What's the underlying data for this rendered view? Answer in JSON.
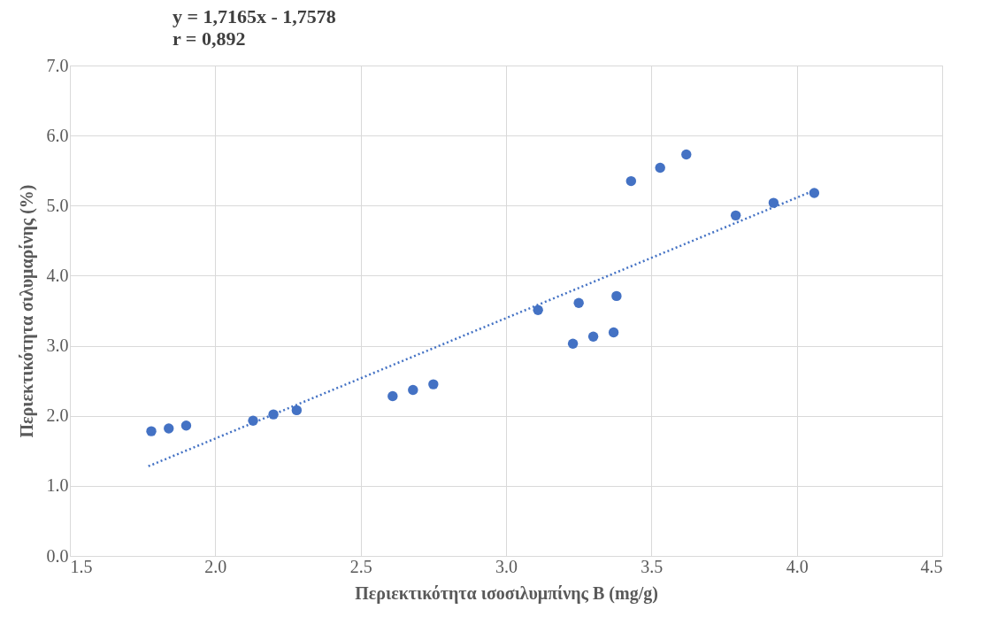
{
  "chart_data": {
    "type": "scatter",
    "title": "y = 1,7165x - 1,7578",
    "subtitle": "r = 0,892",
    "xlabel": "Περιεκτικότητα ισοσιλυμπίνης Β (mg/g)",
    "ylabel": "Περιεκτικότητα σιλυμαρίνης (%)",
    "xlim": [
      1.5,
      4.5
    ],
    "xticks": [
      {
        "value": 1.5,
        "label": "1.5"
      },
      {
        "value": 2,
        "label": "2.0"
      },
      {
        "value": 2.5,
        "label": "2.5"
      },
      {
        "value": 3,
        "label": "3.0"
      },
      {
        "value": 3.5,
        "label": "3.5"
      },
      {
        "value": 4,
        "label": "4.0"
      },
      {
        "value": 4.5,
        "label": "4.5"
      }
    ],
    "ylim": [
      0,
      7
    ],
    "yticks": [
      {
        "value": 0,
        "label": "0.0"
      },
      {
        "value": 1,
        "label": "1.0"
      },
      {
        "value": 2,
        "label": "2.0"
      },
      {
        "value": 3,
        "label": "3.0"
      },
      {
        "value": 4,
        "label": "4.0"
      },
      {
        "value": 5,
        "label": "5.0"
      },
      {
        "value": 6,
        "label": "6.0"
      },
      {
        "value": 7,
        "label": "7.0"
      }
    ],
    "grid": true,
    "series": [
      {
        "marker": "circle",
        "color": "#4472c4",
        "x": [
          1.78,
          1.84,
          1.9,
          2.13,
          2.2,
          2.28,
          2.61,
          2.68,
          2.75,
          3.11,
          3.23,
          3.25,
          3.3,
          3.37,
          3.38,
          3.43,
          3.53,
          3.62,
          3.79,
          3.92,
          4.06
        ],
        "values": [
          1.78,
          1.82,
          1.86,
          1.93,
          2.02,
          2.08,
          2.28,
          2.37,
          2.45,
          3.51,
          3.03,
          3.61,
          3.13,
          3.19,
          3.71,
          5.35,
          5.54,
          5.73,
          4.86,
          5.04,
          5.18
        ]
      },
      {
        "type": "line",
        "marker": "none",
        "line_style": "dotted",
        "color": "#4472c4",
        "x": [
          1.77,
          4.05
        ],
        "values": [
          1.28,
          5.2
        ]
      }
    ]
  }
}
